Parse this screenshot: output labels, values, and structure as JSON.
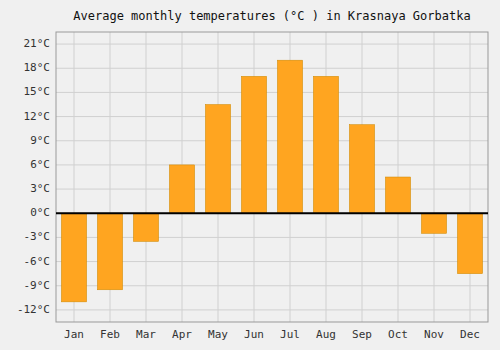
{
  "chart_data": {
    "type": "bar",
    "title": "Average monthly temperatures (°C ) in Krasnaya Gorbatka",
    "categories": [
      "Jan",
      "Feb",
      "Mar",
      "Apr",
      "May",
      "Jun",
      "Jul",
      "Aug",
      "Sep",
      "Oct",
      "Nov",
      "Dec"
    ],
    "values": [
      -11.0,
      -9.5,
      -3.5,
      6.0,
      13.5,
      17.0,
      19.0,
      17.0,
      11.0,
      4.5,
      -2.5,
      -7.5
    ],
    "color": "#FFA520",
    "ylim": [
      -13.5,
      22.5
    ],
    "yticks": [
      {
        "value": -12,
        "label": "-12°C"
      },
      {
        "value": -9,
        "label": "-9°C"
      },
      {
        "value": -6,
        "label": "-6°C"
      },
      {
        "value": -3,
        "label": "-3°C"
      },
      {
        "value": 0,
        "label": "0°C"
      },
      {
        "value": 3,
        "label": "3°C"
      },
      {
        "value": 6,
        "label": "6°C"
      },
      {
        "value": 9,
        "label": "9°C"
      },
      {
        "value": 12,
        "label": "12°C"
      },
      {
        "value": 15,
        "label": "15°C"
      },
      {
        "value": 18,
        "label": "18°C"
      },
      {
        "value": 21,
        "label": "21°C"
      }
    ],
    "grid": true
  }
}
